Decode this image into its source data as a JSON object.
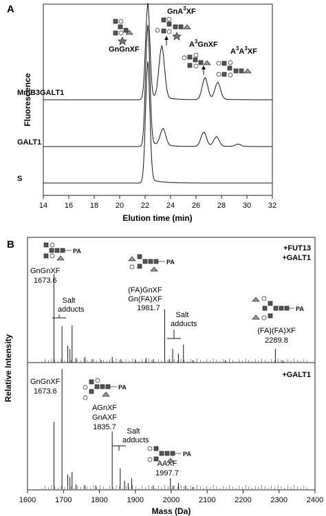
{
  "chart_data": [
    {
      "panel": "A",
      "type": "line",
      "xlabel": "Elution time (min)",
      "ylabel": "Fluorescence",
      "xlim": [
        14,
        32
      ],
      "xticks": [
        14,
        16,
        18,
        20,
        22,
        24,
        26,
        28,
        30,
        32
      ],
      "series": [
        {
          "name": "MmB3GALT1",
          "peaks": [
            {
              "x": 22.2,
              "h": 1.0
            },
            {
              "x": 23.3,
              "h": 0.55
            },
            {
              "x": 26.7,
              "h": 0.23
            },
            {
              "x": 27.7,
              "h": 0.18
            }
          ]
        },
        {
          "name": "GALT1",
          "peaks": [
            {
              "x": 22.2,
              "h": 1.0
            },
            {
              "x": 23.4,
              "h": 0.14
            },
            {
              "x": 26.6,
              "h": 0.12
            },
            {
              "x": 27.6,
              "h": 0.08
            },
            {
              "x": 29.3,
              "h": 0.02
            }
          ]
        },
        {
          "name": "S",
          "peaks": [
            {
              "x": 22.2,
              "h": 1.0
            }
          ]
        }
      ],
      "annotations": [
        {
          "text": "GnGnXF"
        },
        {
          "text_main": "GnA",
          "sup": "3",
          "text_end": "XF"
        },
        {
          "text_main": "A",
          "sup": "3",
          "text_end": "GnXF"
        },
        {
          "text_main": "A",
          "sup": "3",
          "text_mid": "A",
          "sup2": "3",
          "text_end": "XF"
        }
      ]
    },
    {
      "panel": "B",
      "type": "bar",
      "xlabel": "Mass (Da)",
      "ylabel": "Relative Intensity",
      "xlim": [
        1600,
        2400
      ],
      "xticks": [
        1600,
        1700,
        1800,
        1900,
        2000,
        2100,
        2200,
        2300,
        2400
      ],
      "top": {
        "name_line1": "+FUT13",
        "name_line2": "+GALT1",
        "peaks": [
          [
            1673.6,
            0.78
          ],
          [
            1696,
            0.32
          ],
          [
            1712,
            0.15
          ],
          [
            1718,
            0.12
          ],
          [
            1724,
            0.33
          ],
          [
            1735,
            0.04
          ],
          [
            1760,
            0.05
          ],
          [
            1780,
            0.03
          ],
          [
            1805,
            0.02
          ],
          [
            1835.7,
            0.05
          ],
          [
            1860,
            0.03
          ],
          [
            1900,
            0.03
          ],
          [
            1930,
            0.04
          ],
          [
            1950,
            0.03
          ],
          [
            1981.7,
            0.47
          ],
          [
            1995,
            0.03
          ],
          [
            2004,
            0.12
          ],
          [
            2020,
            0.08
          ],
          [
            2034,
            0.16
          ],
          [
            2060,
            0.02
          ],
          [
            2150,
            0.02
          ],
          [
            2289.8,
            0.12
          ],
          [
            2310,
            0.02
          ]
        ],
        "labels": [
          {
            "name": "GnGnXF",
            "mass": "1673.6"
          },
          {
            "name": "(FA)GnXF",
            "name2": "Gn(FA)XF",
            "mass": "1981.7"
          },
          {
            "name": "(FA)(FA)XF",
            "mass": "2289.8"
          }
        ],
        "salt": "Salt adducts"
      },
      "bottom": {
        "name": "+GALT1",
        "peaks": [
          [
            1673.6,
            0.55
          ],
          [
            1696,
            0.98
          ],
          [
            1712,
            0.12
          ],
          [
            1718,
            0.1
          ],
          [
            1724,
            0.14
          ],
          [
            1735,
            0.04
          ],
          [
            1760,
            0.03
          ],
          [
            1790,
            0.03
          ],
          [
            1835.7,
            0.47
          ],
          [
            1858,
            0.17
          ],
          [
            1870,
            0.07
          ],
          [
            1880,
            0.05
          ],
          [
            1890,
            0.09
          ],
          [
            1950,
            0.03
          ],
          [
            1997.7,
            0.09
          ],
          [
            2005,
            0.03
          ],
          [
            2020,
            0.05
          ],
          [
            2040,
            0.03
          ],
          [
            2060,
            0.02
          ]
        ],
        "labels": [
          {
            "name": "GnGnXF",
            "mass": "1673.6"
          },
          {
            "name": "AGnXF",
            "name2": "GnAXF",
            "mass": "1835.7"
          },
          {
            "name": "AAXF",
            "mass": "1997.7"
          }
        ],
        "salt": "Salt adducts"
      },
      "glycan_tag": "PA"
    }
  ]
}
